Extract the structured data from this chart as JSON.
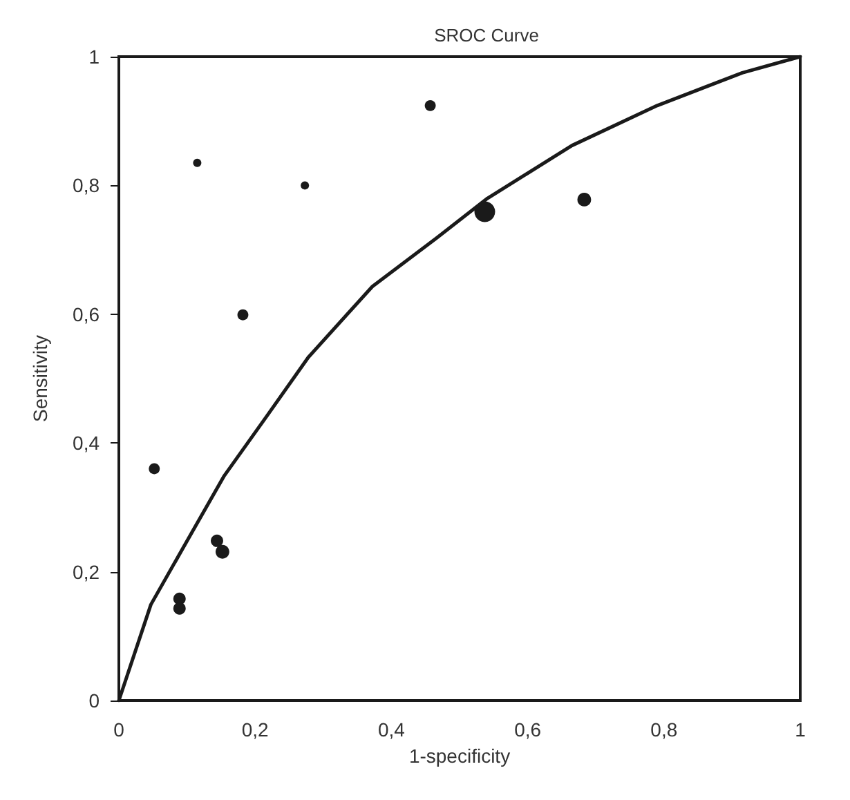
{
  "chart_data": {
    "type": "bubble",
    "title": "SROC Curve",
    "xlabel": "1-specificity",
    "ylabel": "Sensitivity",
    "xlim": [
      0,
      1
    ],
    "ylim": [
      0,
      1
    ],
    "xticks": [
      0,
      {
        "value": 0.2,
        "label": "0,2"
      },
      {
        "value": 0.4,
        "label": "0,4"
      },
      {
        "value": 0.6,
        "label": "0,6"
      },
      {
        "value": 0.8,
        "label": "0,8"
      },
      1
    ],
    "yticks": [
      0,
      {
        "value": 0.2,
        "label": "0,2"
      },
      {
        "value": 0.4,
        "label": "0,4"
      },
      {
        "value": 0.6,
        "label": "0,6"
      },
      {
        "value": 0.8,
        "label": "0,8"
      },
      1
    ],
    "grid": false,
    "series": [
      {
        "color": "#1a1a1a",
        "x": [
          0.052,
          0.115,
          0.089,
          0.089,
          0.144,
          0.152,
          0.182,
          0.273,
          0.457,
          0.537,
          0.683
        ],
        "values": [
          0.36,
          0.835,
          0.158,
          0.143,
          0.248,
          0.231,
          0.599,
          0.8,
          0.924,
          0.759,
          0.778
        ],
        "sizes": [
          0.28,
          0.16,
          0.36,
          0.36,
          0.36,
          0.44,
          0.28,
          0.16,
          0.28,
          1,
          0.44
        ]
      },
      {
        "type": "line",
        "color": "#1a1a1a",
        "marker": "none",
        "line_style": "solid",
        "x": [
          0,
          0.047,
          0.091,
          0.154,
          0.216,
          0.278,
          0.372,
          0.466,
          0.541,
          0.665,
          0.79,
          0.915,
          1
        ],
        "values": [
          0,
          0.149,
          0.231,
          0.348,
          0.44,
          0.533,
          0.643,
          0.718,
          0.78,
          0.862,
          0.924,
          0.975,
          1
        ]
      }
    ]
  }
}
